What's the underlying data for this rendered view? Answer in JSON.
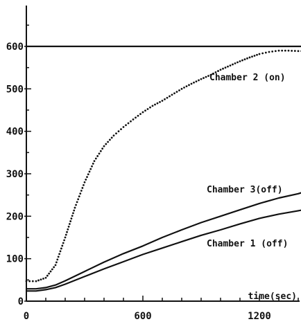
{
  "chart_data": {
    "type": "line",
    "xlabel": "time(sec)",
    "ylabel": "",
    "title": "",
    "xlim": [
      0,
      1450
    ],
    "ylim": [
      0,
      700
    ],
    "x_ticks": [
      0,
      600,
      1200
    ],
    "x_tick_labels": [
      "0",
      "600",
      "1200"
    ],
    "y_ticks": [
      0,
      100,
      200,
      300,
      400,
      500,
      600
    ],
    "y_tick_labels": [
      "0",
      "100",
      "200",
      "300",
      "400",
      "500",
      "600"
    ],
    "grid": false,
    "series": [
      {
        "name": "",
        "style": "solid",
        "x": [
          0,
          1450
        ],
        "y": [
          600,
          600
        ]
      },
      {
        "name": "Chamber 2 (on)",
        "style": "dotted",
        "x": [
          0,
          50,
          100,
          150,
          200,
          250,
          300,
          350,
          400,
          450,
          500,
          550,
          600,
          650,
          700,
          750,
          800,
          850,
          900,
          950,
          1000,
          1050,
          1100,
          1150,
          1200,
          1250,
          1300,
          1350,
          1400,
          1450
        ],
        "y": [
          47,
          47,
          55,
          85,
          150,
          220,
          280,
          330,
          365,
          390,
          410,
          428,
          445,
          460,
          472,
          486,
          500,
          512,
          523,
          533,
          545,
          555,
          565,
          574,
          582,
          587,
          590,
          590,
          589,
          589
        ]
      },
      {
        "name": "Chamber 3(off)",
        "style": "solid",
        "x": [
          0,
          50,
          100,
          150,
          200,
          300,
          400,
          500,
          600,
          700,
          800,
          900,
          1000,
          1100,
          1200,
          1300,
          1400,
          1450
        ],
        "y": [
          29,
          29,
          32,
          38,
          48,
          70,
          92,
          112,
          130,
          150,
          168,
          185,
          200,
          215,
          230,
          243,
          253,
          260
        ]
      },
      {
        "name": "Chamber 1 (off)",
        "style": "solid",
        "x": [
          0,
          50,
          100,
          150,
          200,
          300,
          400,
          500,
          600,
          700,
          800,
          900,
          1000,
          1100,
          1200,
          1300,
          1400,
          1450
        ],
        "y": [
          24,
          24,
          27,
          32,
          40,
          58,
          76,
          93,
          110,
          125,
          140,
          155,
          168,
          182,
          195,
          205,
          213,
          217
        ]
      }
    ]
  }
}
